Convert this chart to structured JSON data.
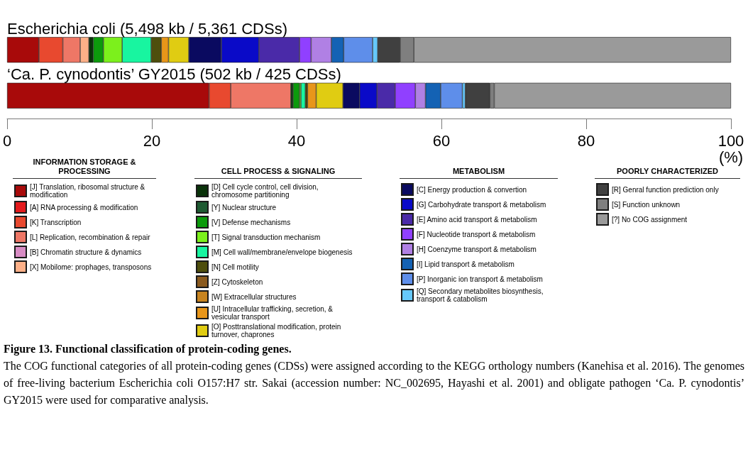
{
  "chart_data": {
    "type": "bar",
    "orientation": "horizontal",
    "stacked": true,
    "categories": [
      "Escherichia coli (5,498 kb / 5,361 CDSs)",
      "‘Ca. P. cynodontis’ GY2015 (502 kb / 425 CDSs)"
    ],
    "series": [
      {
        "name": "[J] Translation, ribosomal structure & modification",
        "color": "#a80a0a",
        "values": [
          4.4,
          27.9
        ]
      },
      {
        "name": "[A] RNA processing & modification",
        "color": "#e31a1c",
        "values": [
          null,
          null
        ]
      },
      {
        "name": "[K] Transcription",
        "color": "#e8492f",
        "values": [
          3.3,
          3.0
        ]
      },
      {
        "name": "[L] Replication, recombination & repair",
        "color": "#ee7766",
        "values": [
          2.4,
          8.3
        ]
      },
      {
        "name": "[B] Chromatin structure & dynamics",
        "color": "#d88cc4",
        "values": [
          null,
          null
        ]
      },
      {
        "name": "[X] Mobilome: prophages, transposons",
        "color": "#fdb088",
        "values": [
          1.2,
          null
        ]
      },
      {
        "name": "[D] Cell cycle control, cell division, chromosome partitioning",
        "color": "#0a330a",
        "values": [
          0.6,
          0.3
        ]
      },
      {
        "name": "[Y] Nuclear structure",
        "color": "#1e5a32",
        "values": [
          null,
          null
        ]
      },
      {
        "name": "[V] Defense mechanisms",
        "color": "#0c9a0c",
        "values": [
          1.4,
          0.9
        ]
      },
      {
        "name": "[T] Signal transduction mechanism",
        "color": "#7cf01c",
        "values": [
          2.6,
          0.2
        ]
      },
      {
        "name": "[M] Cell wall/membrane/envelope biogenesis",
        "color": "#18f5a0",
        "values": [
          4.0,
          0.6
        ]
      },
      {
        "name": "[N] Cell motility",
        "color": "#4e4e0c",
        "values": [
          1.4,
          0.3
        ]
      },
      {
        "name": "[Z] Cytoskeleton",
        "color": "#8a5a1e",
        "values": [
          null,
          null
        ]
      },
      {
        "name": "[W] Extracellular structures",
        "color": "#c88420",
        "values": [
          null,
          null
        ]
      },
      {
        "name": "[U] Intracellular trafficking, secretion, & vesicular transport",
        "color": "#e8961a",
        "values": [
          1.0,
          1.2
        ]
      },
      {
        "name": "[O] Posttranslational modification, protein turnover, chaprones",
        "color": "#e0cc12",
        "values": [
          2.8,
          3.7
        ]
      },
      {
        "name": "[C] Energy production & convertion",
        "color": "#0a0a60",
        "values": [
          4.5,
          2.3
        ]
      },
      {
        "name": "[G] Carbohydrate transport & metabolism",
        "color": "#0a0ac8",
        "values": [
          5.2,
          2.4
        ]
      },
      {
        "name": "[E] Amino acid transport & metabolism",
        "color": "#4a2aa8",
        "values": [
          5.6,
          2.5
        ]
      },
      {
        "name": "[F] Nucleotide transport & metabolism",
        "color": "#9040ff",
        "values": [
          1.6,
          2.8
        ]
      },
      {
        "name": "[H] Coenzyme transport & metabolism",
        "color": "#b080e4",
        "values": [
          2.8,
          1.4
        ]
      },
      {
        "name": "[I] Lipid transport & metabolism",
        "color": "#1462b4",
        "values": [
          1.7,
          2.1
        ]
      },
      {
        "name": "[P] Inorganic ion transport & metabolism",
        "color": "#5e8eea",
        "values": [
          4.0,
          3.0
        ]
      },
      {
        "name": "[Q] Secondary metabolites biosynthesis, transport & catabolism",
        "color": "#66c8fa",
        "values": [
          0.7,
          0.4
        ]
      },
      {
        "name": "[R] Genral function prediction only",
        "color": "#404040",
        "values": [
          3.1,
          3.4
        ]
      },
      {
        "name": "[S] Function unknown",
        "color": "#7f7f7f",
        "values": [
          1.9,
          0.6
        ]
      },
      {
        "name": "[?] No COG assignment",
        "color": "#9a9a9a",
        "values": [
          43.8,
          32.7
        ]
      }
    ],
    "xlim": [
      0,
      100
    ],
    "xticks": [
      0,
      20,
      40,
      60,
      80,
      100
    ],
    "xlabel": "(%)",
    "legend": "bottom",
    "annotations": [
      "INFORMATION STORAGE & PROCESSING",
      "CELL PROCESS & SIGNALING",
      "METABOLISM",
      "POORLY CHARACTERIZED"
    ],
    "title": "Figure 13. Functional classification of protein-coding genes.",
    "subtitle": "The COG functional categories of all protein-coding genes (CDSs) were assigned according to the KEGG orthology numbers (Kanehisa et al. 2016). The genomes of free-living bacterium Escherichia coli O157:H7 str. Sakai (accession number: NC_002695, Hayashi et al. 2001) and obligate pathogen ‘Ca. P. cynodontis’ GY2015 were used for comparative analysis."
  }
}
